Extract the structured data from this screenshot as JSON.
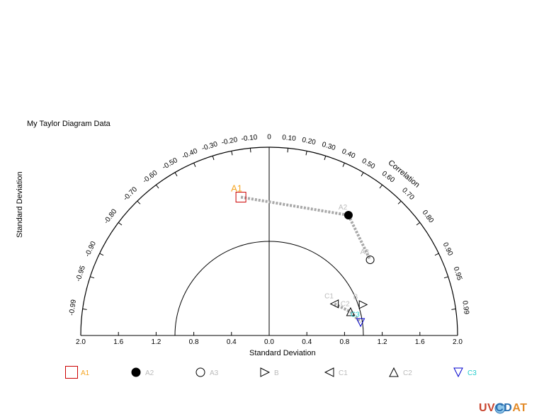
{
  "title": "My Taylor Diagram Data",
  "xlabel": "Standard Deviation",
  "ylabel": "Standard Deviation",
  "logo": {
    "part1": "UV",
    "part2": "CD",
    "part3": "AT"
  },
  "chart_data": {
    "type": "scatter",
    "diagram": "taylor",
    "std_range": [
      -2.0,
      2.0
    ],
    "std_ticks": [
      "2.0",
      "1.6",
      "1.2",
      "0.8",
      "0.4",
      "0.0",
      "0.4",
      "0.8",
      "1.2",
      "1.6",
      "2.0"
    ],
    "std_tick_values": [
      -2.0,
      -1.6,
      -1.2,
      -0.8,
      -0.4,
      0.0,
      0.4,
      0.8,
      1.2,
      1.6,
      2.0
    ],
    "reference_std": 1.0,
    "correlation_label": "Correlation",
    "correlation_ticks": [
      {
        "value": 0.99,
        "label": "0.99"
      },
      {
        "value": 0.95,
        "label": "0.95"
      },
      {
        "value": 0.9,
        "label": "0.90"
      },
      {
        "value": 0.8,
        "label": "0.80"
      },
      {
        "value": 0.7,
        "label": "0.70"
      },
      {
        "value": 0.6,
        "label": "0.60"
      },
      {
        "value": 0.5,
        "label": "0.50"
      },
      {
        "value": 0.4,
        "label": "0.40"
      },
      {
        "value": 0.3,
        "label": "0.30"
      },
      {
        "value": 0.2,
        "label": "0.20"
      },
      {
        "value": 0.1,
        "label": "0.10"
      },
      {
        "value": 0.0,
        "label": "0"
      },
      {
        "value": -0.1,
        "label": "-0.10"
      },
      {
        "value": -0.2,
        "label": "-0.20"
      },
      {
        "value": -0.3,
        "label": "-0.30"
      },
      {
        "value": -0.4,
        "label": "-0.40"
      },
      {
        "value": -0.5,
        "label": "-0.50"
      },
      {
        "value": -0.6,
        "label": "-0.60"
      },
      {
        "value": -0.7,
        "label": "-0.70"
      },
      {
        "value": -0.8,
        "label": "-0.80"
      },
      {
        "value": -0.9,
        "label": "-0.90"
      },
      {
        "value": -0.95,
        "label": "-0.95"
      },
      {
        "value": -0.99,
        "label": "-0.99"
      }
    ],
    "points": [
      {
        "name": "A1",
        "std": 1.5,
        "corr": -0.2,
        "marker": "square",
        "color": "#cc0000",
        "label_color": "#f5a623"
      },
      {
        "name": "A2",
        "std": 1.53,
        "corr": 0.55,
        "marker": "circle-filled",
        "color": "#000000",
        "label_color": "#bbbbbb"
      },
      {
        "name": "A3",
        "std": 1.34,
        "corr": 0.8,
        "marker": "circle",
        "color": "#000000",
        "label_color": "#bbbbbb"
      },
      {
        "name": "B",
        "std": 1.05,
        "corr": 0.95,
        "marker": "triangle-right",
        "color": "#000000",
        "label_color": "#bbbbbb"
      },
      {
        "name": "C1",
        "std": 0.77,
        "corr": 0.9,
        "marker": "triangle-left",
        "color": "#000000",
        "label_color": "#bbbbbb"
      },
      {
        "name": "C2",
        "std": 0.9,
        "corr": 0.96,
        "marker": "triangle-up",
        "color": "#000000",
        "label_color": "#bbbbbb"
      },
      {
        "name": "C3",
        "std": 0.98,
        "corr": 0.99,
        "marker": "triangle-down",
        "color": "#0000cc",
        "label_color": "#22cccc"
      }
    ],
    "arrows": [
      {
        "from": "A1",
        "to": "A2"
      },
      {
        "from": "A2",
        "to": "A3"
      },
      {
        "from": "C1",
        "to": "C2"
      },
      {
        "from": "C2",
        "to": "C3"
      }
    ],
    "legend": [
      "A1",
      "A2",
      "A3",
      "B",
      "C1",
      "C2",
      "C3"
    ],
    "legend_position": "bottom"
  }
}
